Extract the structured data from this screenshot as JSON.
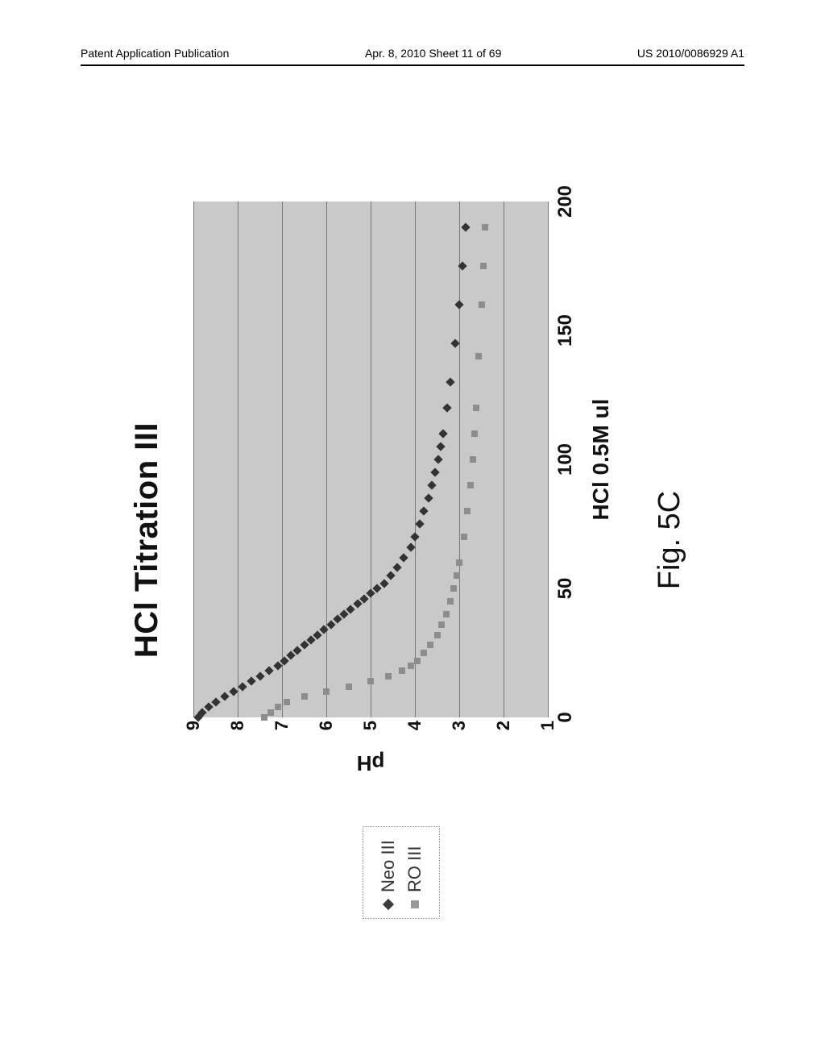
{
  "header": {
    "left": "Patent Application Publication",
    "center": "Apr. 8, 2010  Sheet 11 of 69",
    "right": "US 2010/0086929 A1"
  },
  "legend": {
    "items": [
      {
        "marker": "diamond-dark",
        "label": "Neo III"
      },
      {
        "marker": "square-light",
        "label": "RO III"
      }
    ]
  },
  "chart": {
    "type": "scatter",
    "title": "HCl Titration III",
    "title_fontsize": 40,
    "xlabel": "HCl 0.5M ul",
    "ylabel": "pH",
    "label_fontsize": 26,
    "background_color": "#c9c9c9",
    "grid_color": "#777777",
    "xlim": [
      0,
      200
    ],
    "ylim": [
      1,
      9
    ],
    "xticks": [
      0,
      50,
      100,
      150,
      200
    ],
    "yticks": [
      1,
      2,
      3,
      4,
      5,
      6,
      7,
      8,
      9
    ],
    "series": {
      "neo": {
        "label": "Neo III",
        "marker": "diamond",
        "color": "#333333",
        "x": [
          0,
          2,
          4,
          6,
          8,
          10,
          12,
          14,
          16,
          18,
          20,
          22,
          24,
          26,
          28,
          30,
          32,
          34,
          36,
          38,
          40,
          42,
          44,
          46,
          48,
          50,
          52,
          55,
          58,
          62,
          66,
          70,
          75,
          80,
          85,
          90,
          95,
          100,
          105,
          110,
          120,
          130,
          145,
          160,
          175,
          190
        ],
        "y": [
          8.9,
          8.8,
          8.65,
          8.5,
          8.3,
          8.1,
          7.9,
          7.7,
          7.5,
          7.3,
          7.1,
          6.95,
          6.8,
          6.65,
          6.5,
          6.35,
          6.2,
          6.05,
          5.9,
          5.75,
          5.6,
          5.45,
          5.3,
          5.15,
          5.0,
          4.85,
          4.7,
          4.55,
          4.4,
          4.25,
          4.1,
          4.0,
          3.9,
          3.8,
          3.7,
          3.62,
          3.55,
          3.48,
          3.42,
          3.36,
          3.28,
          3.2,
          3.1,
          3.0,
          2.92,
          2.85
        ]
      },
      "ro": {
        "label": "RO III",
        "marker": "square",
        "color": "#8d8d8d",
        "x": [
          0,
          2,
          4,
          6,
          8,
          10,
          12,
          14,
          16,
          18,
          20,
          22,
          25,
          28,
          32,
          36,
          40,
          45,
          50,
          55,
          60,
          70,
          80,
          90,
          100,
          110,
          120,
          140,
          160,
          175,
          190
        ],
        "y": [
          7.4,
          7.25,
          7.1,
          6.9,
          6.5,
          6.0,
          5.5,
          5.0,
          4.6,
          4.3,
          4.1,
          3.95,
          3.8,
          3.65,
          3.5,
          3.4,
          3.3,
          3.2,
          3.12,
          3.05,
          3.0,
          2.9,
          2.82,
          2.75,
          2.7,
          2.66,
          2.62,
          2.56,
          2.5,
          2.46,
          2.42
        ]
      }
    }
  },
  "figure_caption": "Fig. 5C"
}
